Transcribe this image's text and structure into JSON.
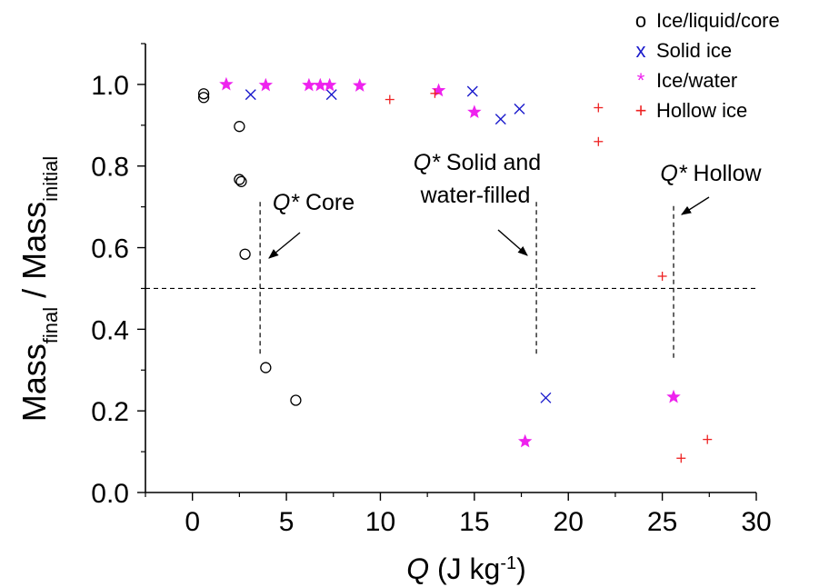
{
  "chart_data": {
    "type": "scatter",
    "xlabel": {
      "italic": "Q",
      "text": " (J kg",
      "sup": "-1",
      "close": ")"
    },
    "ylabel": {
      "a": "Mass",
      "sub_a": "final",
      "mid": " / Mass",
      "sub_b": "initial"
    },
    "xlim": [
      -2.5,
      30
    ],
    "ylim": [
      0,
      1.1
    ],
    "x_ticks": [
      0,
      5,
      10,
      15,
      20,
      25,
      30
    ],
    "y_ticks": [
      0.0,
      0.2,
      0.4,
      0.6,
      0.8,
      1.0
    ],
    "x_tick_labels": [
      "0",
      "5",
      "10",
      "15",
      "20",
      "25",
      "30"
    ],
    "y_tick_labels": [
      "0.0",
      "0.2",
      "0.4",
      "0.6",
      "0.8",
      "1.0"
    ],
    "grid": false,
    "legend_position": "top-right",
    "threshold_y": 0.5,
    "series": [
      {
        "name": "Ice/liquid/core",
        "legend_symbol": "o",
        "marker": "circle",
        "color": "#000000",
        "points": [
          [
            0.6,
            0.977
          ],
          [
            0.6,
            0.968
          ],
          [
            2.5,
            0.897
          ],
          [
            2.5,
            0.767
          ],
          [
            2.6,
            0.762
          ],
          [
            2.8,
            0.584
          ],
          [
            3.9,
            0.306
          ],
          [
            5.5,
            0.226
          ]
        ]
      },
      {
        "name": "Solid ice",
        "legend_symbol": "x",
        "marker": "x",
        "color": "#1a1acc",
        "points": [
          [
            3.1,
            0.975
          ],
          [
            7.4,
            0.975
          ],
          [
            14.9,
            0.983
          ],
          [
            16.4,
            0.915
          ],
          [
            17.4,
            0.94
          ],
          [
            18.8,
            0.232
          ]
        ]
      },
      {
        "name": "Ice/water",
        "legend_symbol": "*",
        "marker": "star",
        "color": "#ee22ee",
        "points": [
          [
            1.8,
            1.0
          ],
          [
            3.9,
            0.998
          ],
          [
            6.2,
            0.998
          ],
          [
            6.8,
            0.998
          ],
          [
            7.3,
            0.998
          ],
          [
            8.9,
            0.997
          ],
          [
            13.1,
            0.985
          ],
          [
            15.0,
            0.932
          ],
          [
            17.7,
            0.125
          ],
          [
            25.6,
            0.234
          ]
        ]
      },
      {
        "name": "Hollow ice",
        "legend_symbol": "+",
        "marker": "plus",
        "color": "#ee2222",
        "points": [
          [
            10.5,
            0.963
          ],
          [
            12.9,
            0.978
          ],
          [
            21.6,
            0.943
          ],
          [
            21.6,
            0.86
          ],
          [
            25.0,
            0.53
          ],
          [
            26.0,
            0.084
          ],
          [
            27.4,
            0.13
          ]
        ]
      }
    ],
    "annotations": [
      {
        "label_italic": "Q*",
        "label_rest": " Core",
        "line_x": 3.6,
        "line_y": [
          0.34,
          0.72
        ]
      },
      {
        "label_italic": "Q*",
        "label_rest": " Solid and",
        "label_line2": "water-filled",
        "line_x": 18.3,
        "line_y": [
          0.34,
          0.72
        ]
      },
      {
        "label_italic": "Q*",
        "label_rest": " Hollow",
        "line_x": 25.6,
        "line_y": [
          0.33,
          0.71
        ]
      }
    ]
  }
}
